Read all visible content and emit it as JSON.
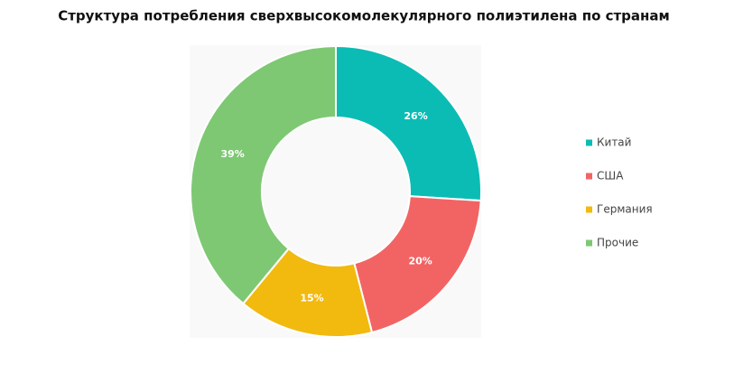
{
  "chart_data": {
    "type": "donut",
    "title": "Структура потребления сверхвысокомолекулярного полиэтилена по странам",
    "categories": [
      "Китай",
      "США",
      "Германия",
      "Прочие"
    ],
    "values": [
      26,
      20,
      15,
      39
    ],
    "value_labels": [
      "26%",
      "20%",
      "15%",
      "39%"
    ],
    "colors": [
      "#0bbcb5",
      "#f26464",
      "#f2b90f",
      "#7ec874"
    ],
    "legend": "right"
  }
}
